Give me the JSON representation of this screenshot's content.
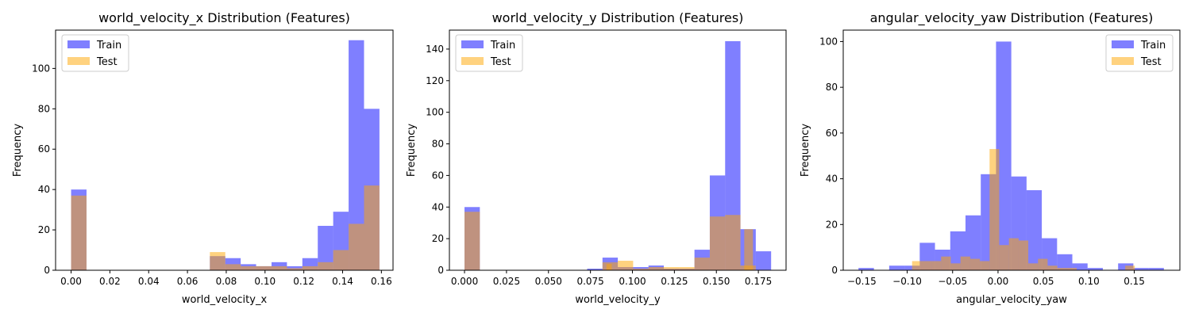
{
  "colors": {
    "train": "#0000ff",
    "test": "#ffa500",
    "overlap": "#b08080"
  },
  "chart_data": [
    {
      "type": "histogram",
      "title": "world_velocity_x Distribution (Features)",
      "xlabel": "world_velocity_x",
      "ylabel": "Frequency",
      "xlim": [
        -0.008,
        0.166
      ],
      "ylim": [
        0,
        119
      ],
      "xticks": [
        0.0,
        0.02,
        0.04,
        0.06,
        0.08,
        0.1,
        0.12,
        0.14,
        0.16
      ],
      "xtick_labels": [
        "0.00",
        "0.02",
        "0.04",
        "0.06",
        "0.08",
        "0.10",
        "0.12",
        "0.14",
        "0.16"
      ],
      "yticks": [
        0,
        20,
        40,
        60,
        80,
        100
      ],
      "ytick_labels": [
        "0",
        "20",
        "40",
        "60",
        "80",
        "100"
      ],
      "legend": {
        "position": "upper-left",
        "entries": [
          "Train",
          "Test"
        ]
      },
      "series": [
        {
          "name": "Train",
          "color": "#0000ff",
          "alpha": 0.5,
          "bin_start": 0.0,
          "bin_width": 0.00795,
          "counts": [
            40,
            0,
            0,
            0,
            0,
            0,
            0,
            0,
            0,
            7,
            6,
            3,
            2,
            4,
            2,
            6,
            22,
            29,
            114,
            80
          ]
        },
        {
          "name": "Test",
          "color": "#ffa500",
          "alpha": 0.5,
          "bin_start": 0.0,
          "bin_width": 0.00795,
          "counts": [
            37,
            0,
            0,
            0,
            0,
            0,
            0,
            0,
            0,
            9,
            3,
            2,
            2,
            2,
            1,
            2,
            4,
            10,
            23,
            42
          ]
        }
      ]
    },
    {
      "type": "histogram",
      "title": "world_velocity_y Distribution (Features)",
      "xlabel": "world_velocity_y",
      "ylabel": "Frequency",
      "xlim": [
        -0.009,
        0.1915
      ],
      "ylim": [
        0,
        152
      ],
      "xticks": [
        0.0,
        0.025,
        0.05,
        0.075,
        0.1,
        0.125,
        0.15,
        0.175
      ],
      "xtick_labels": [
        "0.000",
        "0.025",
        "0.050",
        "0.075",
        "0.100",
        "0.125",
        "0.150",
        "0.175"
      ],
      "yticks": [
        0,
        20,
        40,
        60,
        80,
        100,
        120,
        140
      ],
      "ytick_labels": [
        "0",
        "20",
        "40",
        "60",
        "80",
        "100",
        "120",
        "140"
      ],
      "legend": {
        "position": "upper-left",
        "entries": [
          "Train",
          "Test"
        ]
      },
      "series": [
        {
          "name": "Train",
          "color": "#0000ff",
          "alpha": 0.5,
          "bin_start": 0.0,
          "bin_width": 0.00913,
          "counts": [
            40,
            0,
            0,
            0,
            0,
            0,
            0,
            0,
            1,
            8,
            2,
            2,
            3,
            1,
            1,
            13,
            60,
            145,
            26,
            12
          ]
        },
        {
          "name": "Test",
          "color": "#ffa500",
          "alpha": 0.5,
          "bin_start": 0.0,
          "bin_width": 0.00913,
          "counts": [
            37,
            0,
            0,
            0,
            0,
            0,
            0,
            0,
            0,
            5,
            6,
            1,
            2,
            2,
            2,
            8,
            34,
            35,
            3,
            0
          ],
          "extra_bins": [
            {
              "start": 0.0845,
              "end": 0.0877,
              "count": 4
            },
            {
              "start": 0.1666,
              "end": 0.1718,
              "count": 26
            }
          ]
        }
      ]
    },
    {
      "type": "histogram",
      "title": "angular_velocity_yaw Distribution (Features)",
      "xlabel": "angular_velocity_yaw",
      "ylabel": "Frequency",
      "xlim": [
        -0.1704,
        0.2002
      ],
      "ylim": [
        0,
        105
      ],
      "xticks": [
        -0.15,
        -0.1,
        -0.05,
        0.0,
        0.05,
        0.1,
        0.15
      ],
      "xtick_labels": [
        "−0.15",
        "−0.10",
        "−0.05",
        "0.00",
        "0.05",
        "0.10",
        "0.15"
      ],
      "yticks": [
        0,
        20,
        40,
        60,
        80,
        100
      ],
      "ytick_labels": [
        "0",
        "20",
        "40",
        "60",
        "80",
        "100"
      ],
      "legend": {
        "position": "upper-right",
        "entries": [
          "Train",
          "Test"
        ]
      },
      "series": [
        {
          "name": "Train",
          "color": "#0000ff",
          "alpha": 0.5,
          "bins": [
            [
              -0.1536,
              -0.1366,
              1
            ],
            [
              -0.1198,
              -0.103,
              2
            ],
            [
              -0.103,
              -0.0862,
              2
            ],
            [
              -0.0862,
              -0.0694,
              12
            ],
            [
              -0.0694,
              -0.0526,
              9
            ],
            [
              -0.0526,
              -0.0358,
              17
            ],
            [
              -0.0358,
              -0.019,
              24
            ],
            [
              -0.019,
              -0.0022,
              42
            ],
            [
              -0.0022,
              0.0146,
              100
            ],
            [
              0.0146,
              0.0314,
              41
            ],
            [
              0.0314,
              0.0482,
              35
            ],
            [
              0.0482,
              0.065,
              14
            ],
            [
              0.065,
              0.0818,
              7
            ],
            [
              0.0818,
              0.0986,
              3
            ],
            [
              0.0986,
              0.1154,
              1
            ],
            [
              0.1322,
              0.149,
              3
            ],
            [
              0.149,
              0.1658,
              1
            ],
            [
              0.1658,
              0.1826,
              1
            ]
          ]
        },
        {
          "name": "Test",
          "color": "#ffa500",
          "alpha": 0.5,
          "bins": [
            [
              -0.0946,
              -0.0839,
              4
            ],
            [
              -0.0839,
              -0.0733,
              4
            ],
            [
              -0.0733,
              -0.0626,
              4
            ],
            [
              -0.0626,
              -0.052,
              6
            ],
            [
              -0.052,
              -0.0413,
              3
            ],
            [
              -0.0413,
              -0.0306,
              6
            ],
            [
              -0.0306,
              -0.02,
              5
            ],
            [
              -0.02,
              -0.0093,
              4
            ],
            [
              -0.0093,
              0.0013,
              53
            ],
            [
              0.0013,
              0.012,
              11
            ],
            [
              0.012,
              0.0227,
              14
            ],
            [
              0.0227,
              0.0333,
              13
            ],
            [
              0.0333,
              0.044,
              3
            ],
            [
              0.044,
              0.0546,
              5
            ],
            [
              0.0546,
              0.0653,
              2
            ],
            [
              0.0653,
              0.076,
              1
            ],
            [
              0.076,
              0.0866,
              1
            ],
            [
              0.14,
              0.1506,
              2
            ]
          ]
        }
      ]
    }
  ]
}
